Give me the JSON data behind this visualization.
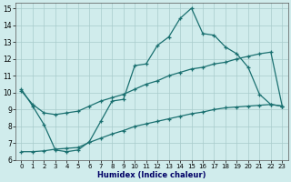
{
  "xlabel": "Humidex (Indice chaleur)",
  "xlim": [
    -0.5,
    23.5
  ],
  "ylim": [
    6,
    15.3
  ],
  "xticks": [
    0,
    1,
    2,
    3,
    4,
    5,
    6,
    7,
    8,
    9,
    10,
    11,
    12,
    13,
    14,
    15,
    16,
    17,
    18,
    19,
    20,
    21,
    22,
    23
  ],
  "yticks": [
    6,
    7,
    8,
    9,
    10,
    11,
    12,
    13,
    14,
    15
  ],
  "bg_color": "#d0ecec",
  "line_color": "#1a7070",
  "x_jagged": [
    0,
    1,
    2,
    3,
    4,
    5,
    6,
    7,
    8,
    9,
    10,
    11,
    12,
    13,
    14,
    15,
    16,
    17,
    18,
    19,
    20,
    21,
    22,
    23
  ],
  "y_jagged": [
    10.2,
    9.2,
    8.1,
    6.6,
    6.5,
    6.6,
    7.1,
    8.3,
    9.5,
    9.6,
    11.6,
    11.7,
    12.8,
    13.3,
    14.4,
    15.0,
    13.5,
    13.4,
    12.7,
    12.3,
    11.5,
    9.9,
    9.3,
    9.2
  ],
  "x_upper": [
    0,
    1,
    2,
    3,
    4,
    5,
    6,
    7,
    8,
    9,
    10,
    11,
    12,
    13,
    14,
    15,
    16,
    17,
    18,
    19,
    20,
    21,
    22,
    23
  ],
  "y_upper": [
    10.1,
    9.3,
    8.8,
    8.7,
    8.8,
    8.9,
    9.2,
    9.5,
    9.7,
    9.9,
    10.2,
    10.5,
    10.7,
    11.0,
    11.2,
    11.4,
    11.5,
    11.7,
    11.8,
    12.0,
    12.15,
    12.3,
    12.4,
    9.2
  ],
  "x_lower": [
    0,
    1,
    2,
    3,
    4,
    5,
    6,
    7,
    8,
    9,
    10,
    11,
    12,
    13,
    14,
    15,
    16,
    17,
    18,
    19,
    20,
    21,
    22,
    23
  ],
  "y_lower": [
    6.5,
    6.5,
    6.55,
    6.65,
    6.7,
    6.75,
    7.05,
    7.3,
    7.55,
    7.75,
    8.0,
    8.15,
    8.3,
    8.45,
    8.6,
    8.75,
    8.85,
    9.0,
    9.1,
    9.15,
    9.2,
    9.25,
    9.3,
    9.2
  ]
}
